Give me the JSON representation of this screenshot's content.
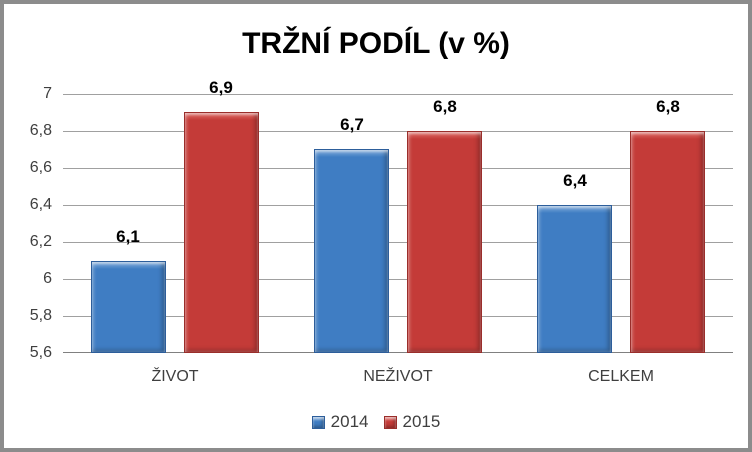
{
  "chart_data": {
    "type": "bar",
    "title": "TRŽNÍ PODÍL (v %)",
    "categories": [
      "ŽIVOT",
      "NEŽIVOT",
      "CELKEM"
    ],
    "series": [
      {
        "name": "2014",
        "values": [
          6.1,
          6.7,
          6.4
        ],
        "value_labels": [
          "6,1",
          "6,7",
          "6,4"
        ],
        "color": "#3F7DC3",
        "highlight_color": "#85AEDC",
        "border_color": "#2D5E9B"
      },
      {
        "name": "2015",
        "values": [
          6.9,
          6.8,
          6.8
        ],
        "value_labels": [
          "6,9",
          "6,8",
          "6,8"
        ],
        "color": "#C43B38",
        "highlight_color": "#E0716C",
        "border_color": "#9A2E2B"
      }
    ],
    "ylim": [
      5.6,
      7.0
    ],
    "yticks": [
      {
        "value": 7.0,
        "label": "7"
      },
      {
        "value": 6.8,
        "label": "6,8"
      },
      {
        "value": 6.6,
        "label": "6,6"
      },
      {
        "value": 6.4,
        "label": "6,4"
      },
      {
        "value": 6.2,
        "label": "6,2"
      },
      {
        "value": 6.0,
        "label": "6"
      },
      {
        "value": 5.8,
        "label": "5,8"
      },
      {
        "value": 5.6,
        "label": "5,6"
      }
    ],
    "grid": true,
    "legend_position": "bottom"
  },
  "style": {
    "background": "#FFFFFF",
    "frame_color": "#8C8C8C",
    "gridline_color": "#A0A0A0",
    "axis_line_color": "#808080",
    "text_color": "#3F3F3F",
    "title_color": "#000000",
    "data_label_color": "#000000"
  }
}
